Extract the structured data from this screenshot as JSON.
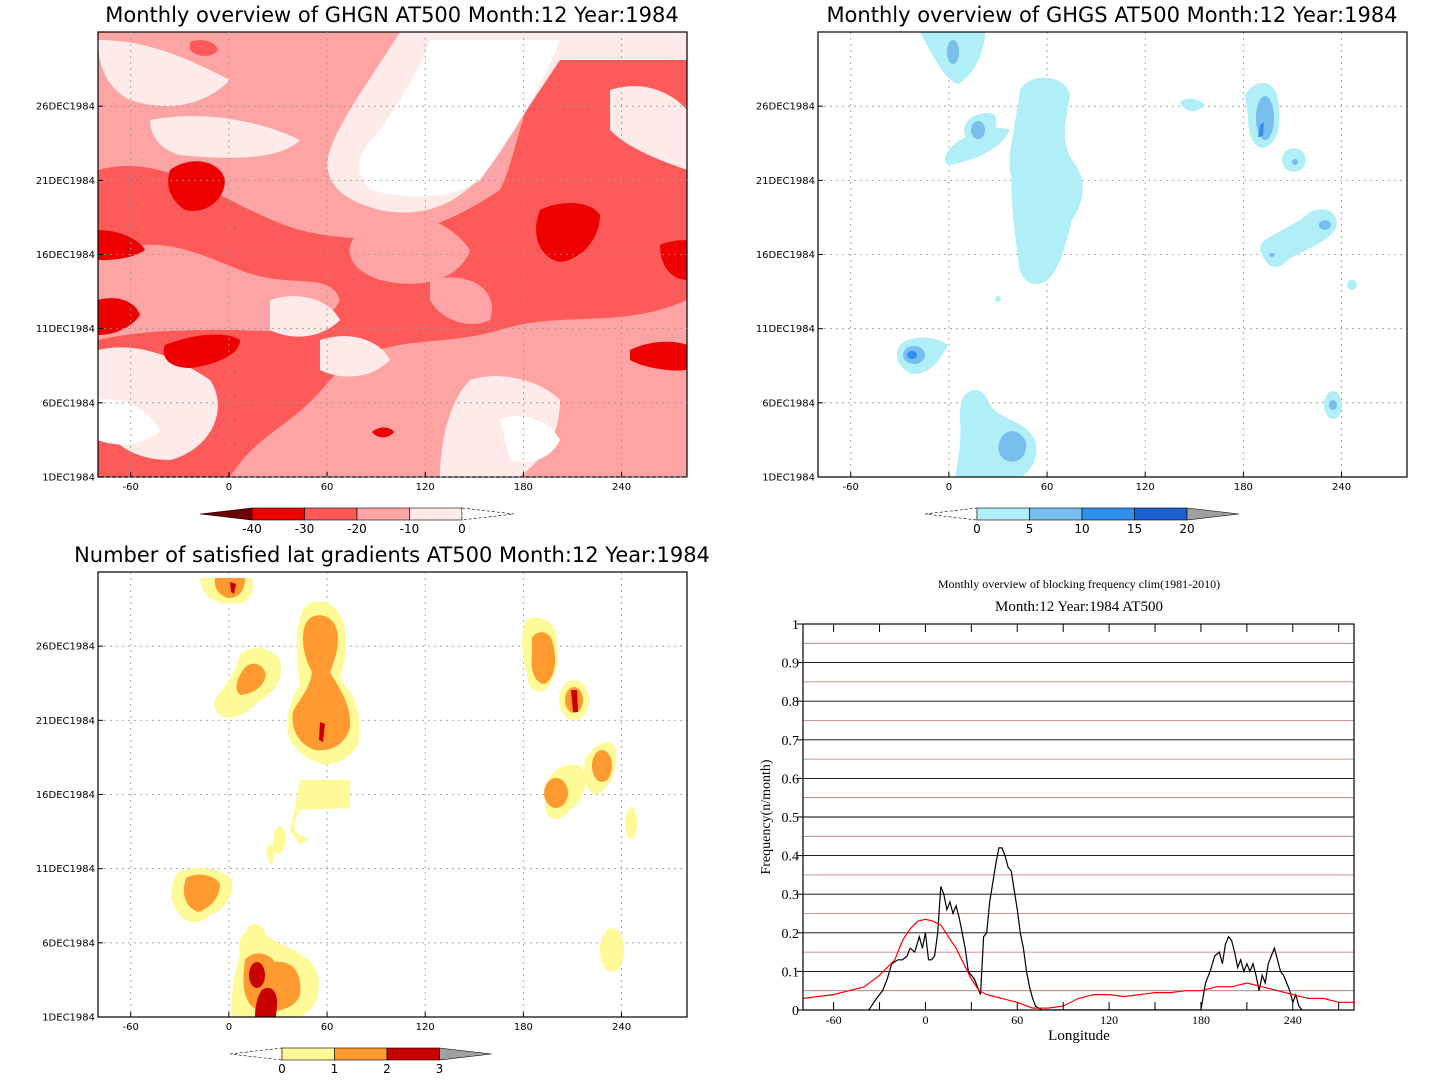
{
  "chart_data": [
    {
      "type": "heatmap",
      "title": "Monthly overview of GHGN AT500 Month:12 Year:1984",
      "x_ticks": [
        "-60",
        "0",
        "60",
        "120",
        "180",
        "240"
      ],
      "y_ticks": [
        "1DEC1984",
        "6DEC1984",
        "11DEC1984",
        "16DEC1984",
        "21DEC1984",
        "26DEC1984"
      ],
      "xlim": [
        -80,
        280
      ],
      "ylim": [
        1,
        31
      ],
      "colorbar": {
        "ticks": [
          "-40",
          "-30",
          "-20",
          "-10",
          "0"
        ],
        "colors": [
          "#6b0000",
          "#ee0000",
          "#ff5a5a",
          "#ffa4a4",
          "#ffeaea",
          "#ffffff"
        ]
      }
    },
    {
      "type": "heatmap",
      "title": "Monthly overview of GHGS AT500 Month:12 Year:1984",
      "x_ticks": [
        "-60",
        "0",
        "60",
        "120",
        "180",
        "240"
      ],
      "y_ticks": [
        "1DEC1984",
        "6DEC1984",
        "11DEC1984",
        "16DEC1984",
        "21DEC1984",
        "26DEC1984"
      ],
      "xlim": [
        -80,
        280
      ],
      "ylim": [
        1,
        31
      ],
      "colorbar": {
        "ticks": [
          "0",
          "5",
          "10",
          "15",
          "20"
        ],
        "colors": [
          "#ffffff",
          "#b0eef8",
          "#78beee",
          "#3090ee",
          "#1a60d0",
          "#a0a0a0"
        ]
      }
    },
    {
      "type": "heatmap",
      "title": "Number of satisfied lat gradients AT500 Month:12 Year:1984",
      "x_ticks": [
        "-60",
        "0",
        "60",
        "120",
        "180",
        "240"
      ],
      "y_ticks": [
        "1DEC1984",
        "6DEC1984",
        "11DEC1984",
        "16DEC1984",
        "21DEC1984",
        "26DEC1984"
      ],
      "xlim": [
        -80,
        280
      ],
      "ylim": [
        1,
        31
      ],
      "colorbar": {
        "ticks": [
          "0",
          "1",
          "2",
          "3"
        ],
        "colors": [
          "#ffffff",
          "#fffa98",
          "#ff9a30",
          "#c80000",
          "#a0a0a0"
        ]
      }
    },
    {
      "type": "line",
      "title": "Monthly overview of blocking frequency clim(1981-2010)",
      "subtitle": "Month:12 Year:1984  AT500",
      "xlabel": "Longitude",
      "ylabel": "Frequency(n/month)",
      "xlim": [
        -80,
        280
      ],
      "ylim": [
        0,
        1
      ],
      "x_ticks": [
        "-60",
        "0",
        "60",
        "120",
        "180",
        "240"
      ],
      "y_ticks": [
        "0",
        "0.1",
        "0.2",
        "0.3",
        "0.4",
        "0.5",
        "0.6",
        "0.7",
        "0.8",
        "0.9",
        "1"
      ],
      "series": [
        {
          "color": "#000000",
          "x": [
            -37,
            -32,
            -28,
            -25,
            -22,
            -18,
            -15,
            -12,
            -10,
            -7,
            -4,
            -2,
            0,
            2,
            4,
            6,
            8,
            10,
            12,
            14,
            16,
            18,
            20,
            22,
            24,
            26,
            28,
            32,
            36,
            38,
            40,
            42,
            44,
            46,
            48,
            50,
            52,
            54,
            56,
            58,
            60,
            62,
            64,
            66,
            68,
            70,
            72,
            76,
            80,
            90,
            100,
            120,
            150,
            180,
            183,
            186,
            189,
            192,
            194,
            196,
            198,
            200,
            202,
            204,
            206,
            208,
            210,
            212,
            214,
            216,
            218,
            220,
            222,
            224,
            226,
            228,
            230,
            232,
            234,
            236,
            238,
            240,
            242,
            244,
            246,
            248
          ],
          "y": [
            0,
            0.03,
            0.05,
            0.08,
            0.12,
            0.13,
            0.13,
            0.14,
            0.16,
            0.15,
            0.19,
            0.16,
            0.2,
            0.13,
            0.13,
            0.14,
            0.2,
            0.32,
            0.3,
            0.26,
            0.28,
            0.25,
            0.27,
            0.24,
            0.2,
            0.16,
            0.1,
            0.08,
            0.04,
            0.19,
            0.2,
            0.28,
            0.33,
            0.38,
            0.42,
            0.42,
            0.4,
            0.37,
            0.36,
            0.31,
            0.26,
            0.2,
            0.16,
            0.1,
            0.06,
            0.03,
            0.01,
            0,
            0,
            0,
            0,
            0,
            0,
            0,
            0.07,
            0.1,
            0.14,
            0.15,
            0.12,
            0.17,
            0.19,
            0.18,
            0.15,
            0.11,
            0.13,
            0.1,
            0.12,
            0.1,
            0.12,
            0.09,
            0.05,
            0.09,
            0.07,
            0.12,
            0.14,
            0.16,
            0.13,
            0.1,
            0.09,
            0.07,
            0.05,
            0.02,
            0.04,
            0.01,
            0,
            0
          ]
        },
        {
          "color": "#ff0000",
          "x": [
            -80,
            -70,
            -60,
            -50,
            -40,
            -30,
            -20,
            -15,
            -10,
            -5,
            0,
            5,
            10,
            15,
            20,
            25,
            30,
            35,
            40,
            45,
            50,
            55,
            60,
            70,
            80,
            90,
            100,
            110,
            120,
            130,
            140,
            150,
            160,
            170,
            180,
            190,
            200,
            210,
            220,
            230,
            240,
            250,
            260,
            270,
            280
          ],
          "y": [
            0.03,
            0.035,
            0.04,
            0.05,
            0.06,
            0.09,
            0.13,
            0.18,
            0.21,
            0.23,
            0.235,
            0.23,
            0.22,
            0.19,
            0.16,
            0.12,
            0.08,
            0.05,
            0.04,
            0.035,
            0.03,
            0.025,
            0.02,
            0.005,
            0.005,
            0.01,
            0.03,
            0.04,
            0.04,
            0.035,
            0.04,
            0.045,
            0.045,
            0.05,
            0.05,
            0.06,
            0.06,
            0.07,
            0.06,
            0.05,
            0.04,
            0.03,
            0.03,
            0.02,
            0.02
          ]
        }
      ]
    }
  ]
}
